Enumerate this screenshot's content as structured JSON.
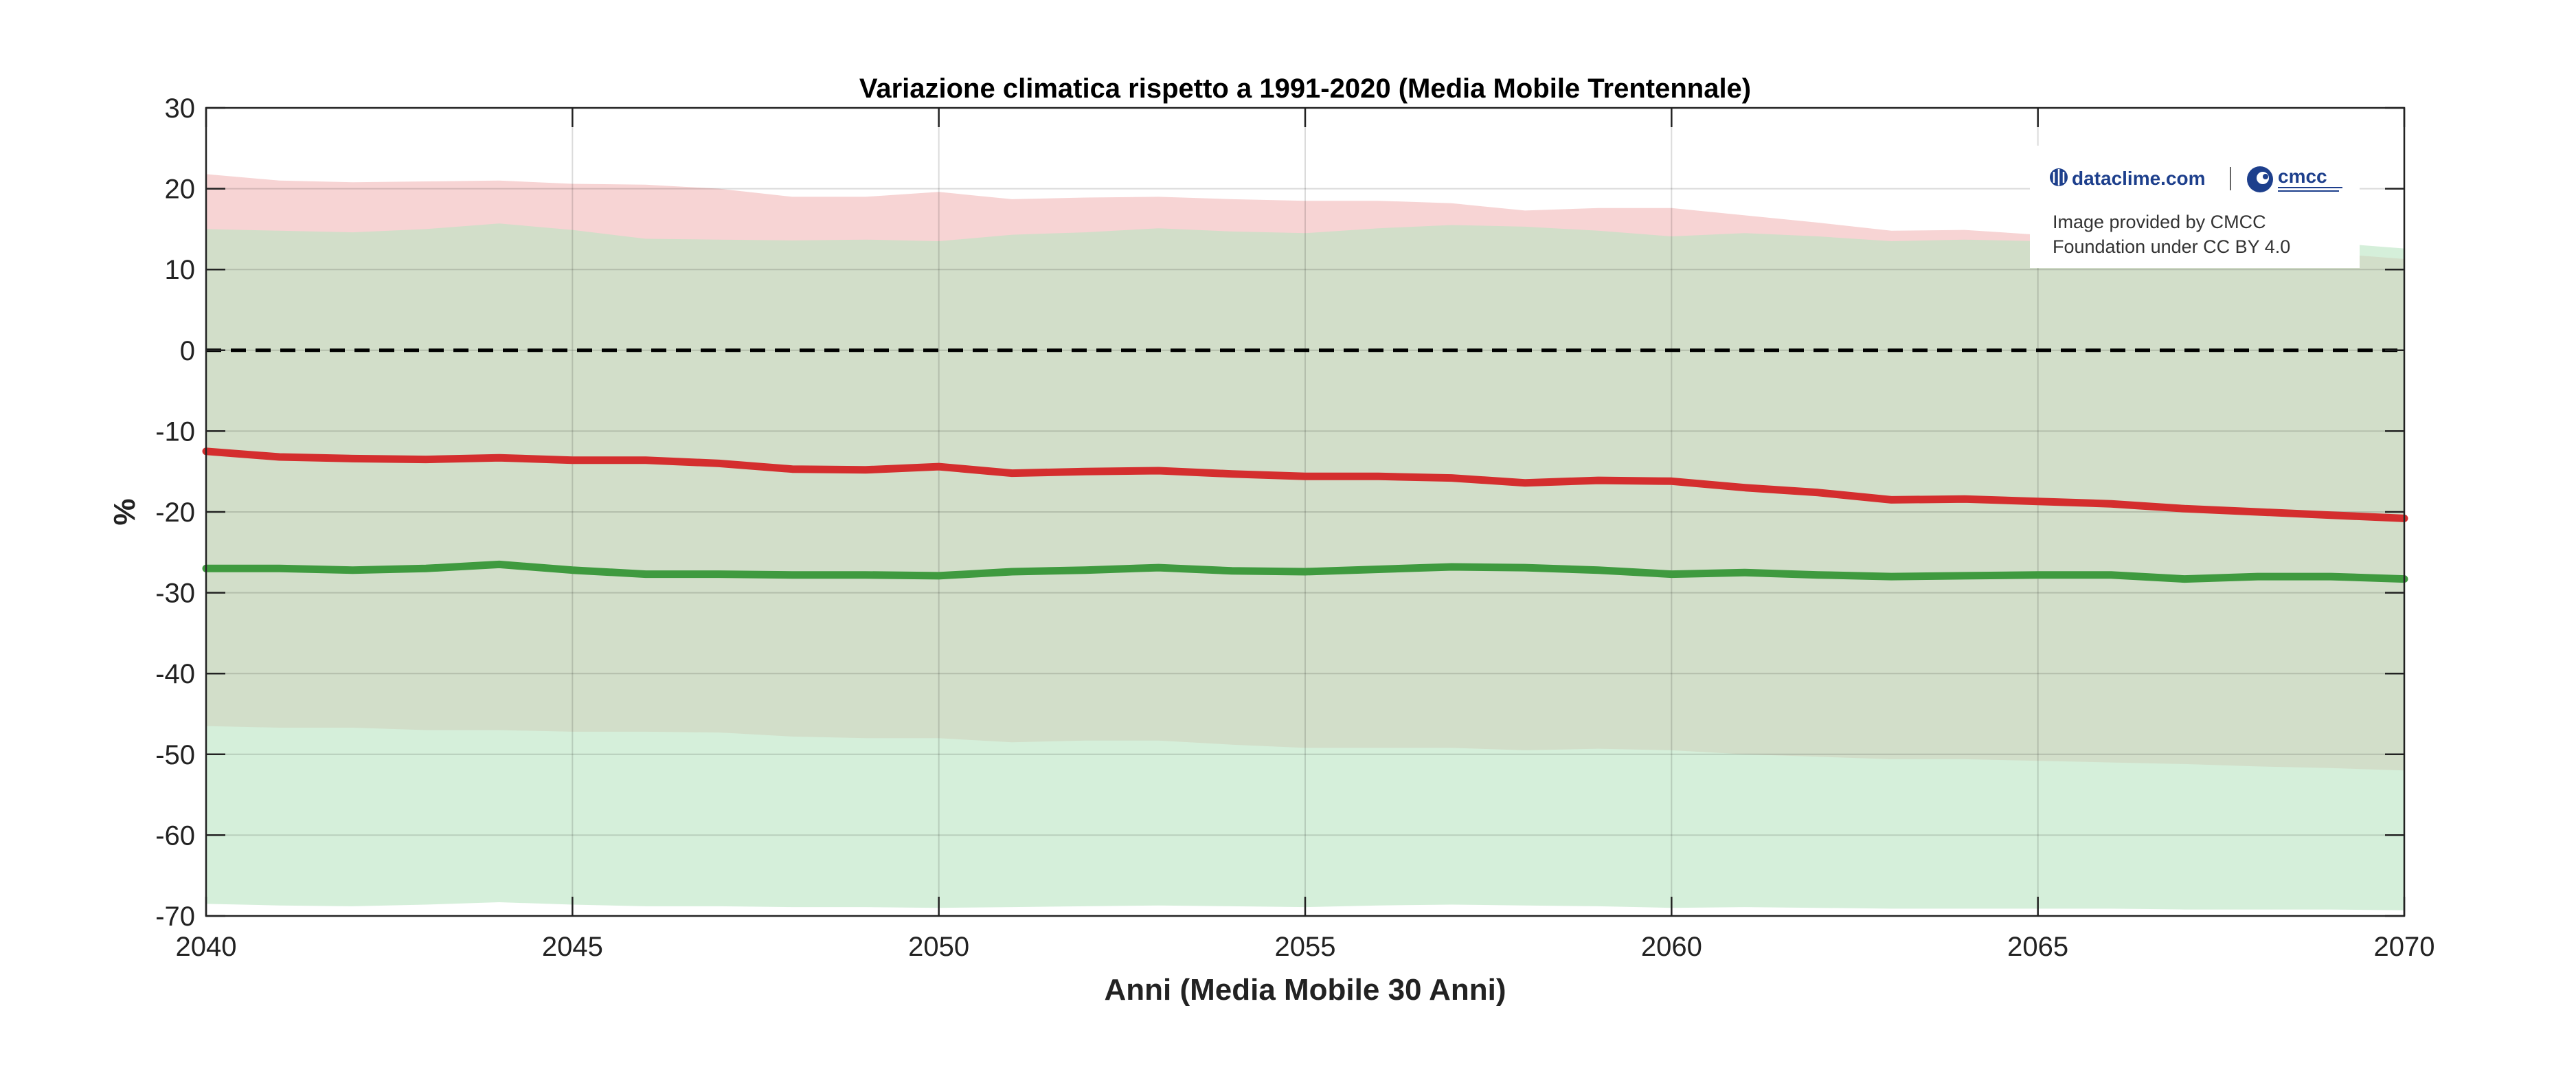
{
  "chart_data": {
    "type": "area",
    "title": "Variazione climatica rispetto a 1991-2020 (Media Mobile Trentennale)",
    "xlabel": "Anni (Media Mobile 30 Anni)",
    "ylabel": "%",
    "xlim": [
      2040,
      2070
    ],
    "ylim": [
      -70,
      30
    ],
    "xticks": [
      2040,
      2045,
      2050,
      2055,
      2060,
      2065,
      2070
    ],
    "yticks": [
      30,
      20,
      10,
      0,
      -10,
      -20,
      -30,
      -40,
      -50,
      -60,
      -70
    ],
    "grid": true,
    "reference_line": {
      "y": 0,
      "style": "dashed",
      "color": "#000000"
    },
    "x": [
      2040,
      2041,
      2042,
      2043,
      2044,
      2045,
      2046,
      2047,
      2048,
      2049,
      2050,
      2051,
      2052,
      2053,
      2054,
      2055,
      2056,
      2057,
      2058,
      2059,
      2060,
      2061,
      2062,
      2063,
      2064,
      2065,
      2066,
      2067,
      2068,
      2069,
      2070
    ],
    "series": [
      {
        "color": "#d42e2e",
        "band_color": "#f1b8b8",
        "values": [
          -12.5,
          -13.2,
          -13.4,
          -13.5,
          -13.3,
          -13.6,
          -13.6,
          -14.0,
          -14.7,
          -14.8,
          -14.4,
          -15.2,
          -15.0,
          -14.9,
          -15.3,
          -15.6,
          -15.6,
          -15.8,
          -16.4,
          -16.1,
          -16.2,
          -17.0,
          -17.6,
          -18.5,
          -18.4,
          -18.7,
          -19.0,
          -19.6,
          -20.0,
          -20.4,
          -20.8
        ],
        "upper": [
          21.8,
          21.0,
          20.8,
          20.9,
          21.0,
          20.6,
          20.5,
          20.0,
          19.0,
          19.0,
          19.6,
          18.7,
          18.9,
          19.0,
          18.7,
          18.5,
          18.5,
          18.2,
          17.3,
          17.6,
          17.6,
          16.7,
          15.8,
          14.8,
          14.9,
          14.3,
          13.9,
          13.0,
          12.5,
          12.0,
          11.3
        ],
        "lower": [
          -46.5,
          -46.7,
          -46.7,
          -47.0,
          -47.0,
          -47.2,
          -47.2,
          -47.3,
          -47.8,
          -48.0,
          -48.0,
          -48.5,
          -48.3,
          -48.3,
          -48.8,
          -49.2,
          -49.2,
          -49.2,
          -49.5,
          -49.3,
          -49.5,
          -50.0,
          -50.3,
          -50.6,
          -50.6,
          -50.8,
          -51.0,
          -51.2,
          -51.5,
          -51.7,
          -52.0
        ]
      },
      {
        "color": "#3f9a3f",
        "band_color": "#b9e4c1",
        "values": [
          -27.0,
          -27.0,
          -27.2,
          -27.0,
          -26.5,
          -27.2,
          -27.7,
          -27.7,
          -27.8,
          -27.8,
          -27.9,
          -27.4,
          -27.2,
          -26.9,
          -27.3,
          -27.4,
          -27.1,
          -26.8,
          -26.9,
          -27.2,
          -27.7,
          -27.5,
          -27.8,
          -28.0,
          -27.9,
          -27.8,
          -27.8,
          -28.3,
          -28.0,
          -28.0,
          -28.3
        ],
        "upper": [
          15.0,
          14.8,
          14.6,
          15.0,
          15.7,
          14.9,
          13.8,
          13.7,
          13.6,
          13.7,
          13.5,
          14.3,
          14.6,
          15.1,
          14.7,
          14.5,
          15.1,
          15.5,
          15.3,
          14.8,
          14.1,
          14.5,
          14.1,
          13.5,
          13.7,
          13.5,
          13.5,
          12.6,
          13.2,
          13.3,
          12.6
        ],
        "lower": [
          -68.5,
          -68.7,
          -68.8,
          -68.6,
          -68.3,
          -68.6,
          -68.8,
          -68.8,
          -68.9,
          -68.9,
          -69.0,
          -68.9,
          -68.8,
          -68.7,
          -68.8,
          -68.9,
          -68.7,
          -68.6,
          -68.7,
          -68.8,
          -69.0,
          -68.9,
          -69.0,
          -69.1,
          -69.1,
          -69.1,
          -69.1,
          -69.2,
          -69.2,
          -69.2,
          -69.3
        ]
      }
    ]
  },
  "logos": {
    "dataclime_text": "dataclime.com",
    "cmcc_text": "cmcc"
  },
  "credit": {
    "line1": "Image provided by CMCC",
    "line2": "Foundation under CC BY 4.0"
  }
}
